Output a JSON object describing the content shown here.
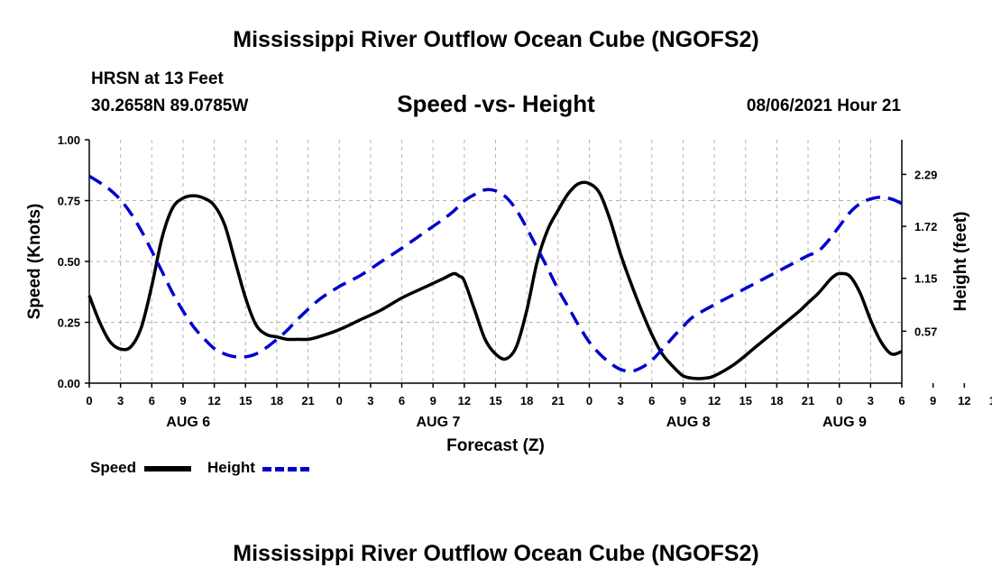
{
  "titles": {
    "top": "Mississippi River Outflow Ocean Cube (NGOFS2)",
    "bottom": "Mississippi River Outflow Ocean Cube (NGOFS2)"
  },
  "header": {
    "station": "HRSN at 13 Feet",
    "coords": "30.2658N  89.0785W",
    "subtitle": "Speed -vs- Height",
    "datetime": "08/06/2021 Hour 21"
  },
  "legend": {
    "speed_label": "Speed",
    "height_label": "Height"
  },
  "colors": {
    "speed": "#000000",
    "height": "#0000cc",
    "grid": "#b3b3b3"
  },
  "chart_data": {
    "type": "line",
    "xlabel": "Forecast (Z)",
    "ylabel_left": "Speed (Knots)",
    "ylabel_right": "Height (feet)",
    "x_unit": "hours from Aug 6 00Z",
    "xlim": [
      0,
      78
    ],
    "ylim_left": [
      0,
      1.0
    ],
    "ylim_right": [
      0,
      2.67
    ],
    "left_ticks": [
      "0.00",
      "0.25",
      "0.50",
      "0.75",
      "1.00"
    ],
    "right_ticks": [
      "0.57",
      "1.15",
      "1.72",
      "2.29"
    ],
    "x_tick_labels": [
      "0",
      "3",
      "6",
      "9",
      "12",
      "15",
      "18",
      "21",
      "0",
      "3",
      "6",
      "9",
      "12",
      "15",
      "18",
      "21",
      "0",
      "3",
      "6",
      "9",
      "12",
      "15",
      "18",
      "21",
      "0",
      "3",
      "6",
      "9",
      "12",
      "15",
      "18",
      "21",
      "0",
      "3",
      "6"
    ],
    "date_labels": [
      {
        "label": "AUG 6",
        "hour": 9.5
      },
      {
        "label": "AUG 7",
        "hour": 33.5
      },
      {
        "label": "AUG 8",
        "hour": 57.5
      },
      {
        "label": "AUG 9",
        "hour": 72.5
      }
    ],
    "grid": true,
    "series": [
      {
        "name": "Speed",
        "axis": "left",
        "x": [
          0,
          1,
          2,
          3,
          4,
          5,
          6,
          7,
          8,
          9,
          10,
          11,
          12,
          13,
          14,
          15,
          16,
          17,
          18,
          19,
          20,
          21,
          22,
          24,
          26,
          28,
          30,
          32,
          34,
          35,
          35.5,
          36,
          37,
          38,
          39,
          40,
          41,
          42,
          43,
          44,
          45,
          46,
          47,
          48,
          49,
          50,
          51,
          52,
          53,
          54,
          55,
          56,
          57,
          58,
          59,
          60,
          62,
          64,
          66,
          68,
          69,
          70,
          71,
          71.5,
          72,
          73,
          74,
          75,
          76,
          77,
          78
        ],
        "values": [
          0.36,
          0.25,
          0.17,
          0.14,
          0.15,
          0.23,
          0.4,
          0.6,
          0.72,
          0.76,
          0.77,
          0.76,
          0.73,
          0.65,
          0.5,
          0.35,
          0.24,
          0.2,
          0.19,
          0.18,
          0.18,
          0.18,
          0.19,
          0.22,
          0.26,
          0.3,
          0.35,
          0.39,
          0.43,
          0.45,
          0.44,
          0.42,
          0.3,
          0.18,
          0.12,
          0.1,
          0.15,
          0.3,
          0.5,
          0.63,
          0.71,
          0.78,
          0.82,
          0.82,
          0.78,
          0.67,
          0.53,
          0.41,
          0.3,
          0.2,
          0.12,
          0.07,
          0.03,
          0.02,
          0.02,
          0.03,
          0.08,
          0.15,
          0.22,
          0.29,
          0.33,
          0.37,
          0.42,
          0.44,
          0.45,
          0.44,
          0.37,
          0.26,
          0.17,
          0.12,
          0.13
        ]
      },
      {
        "name": "Height",
        "axis": "right",
        "x": [
          0,
          1,
          2,
          3,
          4,
          5,
          6,
          7,
          8,
          9,
          10,
          11,
          12,
          13,
          14,
          15,
          16,
          17,
          18,
          19,
          20,
          22,
          24,
          26,
          28,
          30,
          32,
          34,
          35,
          36,
          37,
          38,
          39,
          40,
          41,
          42,
          43,
          44,
          45,
          46,
          47,
          48,
          49,
          50,
          51,
          52,
          53,
          54,
          55,
          56,
          57,
          58,
          60,
          62,
          64,
          66,
          67,
          68,
          69,
          70,
          71,
          72,
          73,
          74,
          75,
          76,
          77,
          78
        ],
        "values": [
          2.27,
          2.2,
          2.12,
          2.01,
          1.86,
          1.67,
          1.45,
          1.22,
          0.99,
          0.79,
          0.62,
          0.49,
          0.38,
          0.32,
          0.29,
          0.29,
          0.32,
          0.39,
          0.48,
          0.58,
          0.7,
          0.91,
          1.06,
          1.18,
          1.33,
          1.48,
          1.64,
          1.8,
          1.89,
          2.0,
          2.07,
          2.12,
          2.11,
          2.04,
          1.9,
          1.7,
          1.48,
          1.26,
          1.03,
          0.83,
          0.63,
          0.45,
          0.32,
          0.22,
          0.15,
          0.13,
          0.17,
          0.25,
          0.37,
          0.5,
          0.62,
          0.73,
          0.86,
          0.98,
          1.1,
          1.22,
          1.28,
          1.34,
          1.4,
          1.45,
          1.57,
          1.72,
          1.87,
          1.97,
          2.02,
          2.04,
          2.02,
          1.97
        ]
      }
    ]
  }
}
